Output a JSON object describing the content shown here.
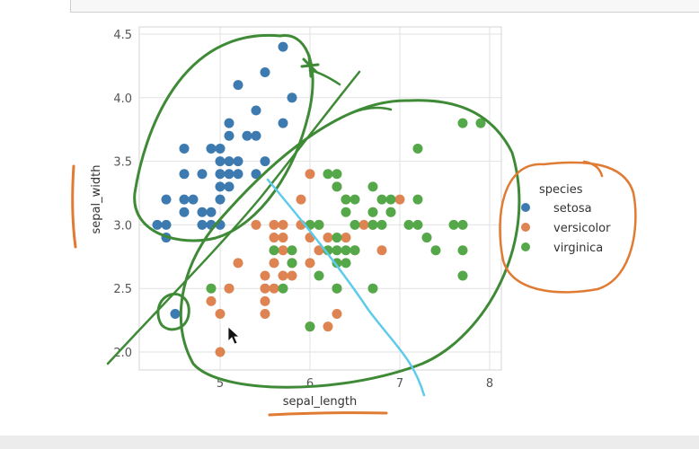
{
  "chart_data": {
    "type": "scatter",
    "xlabel": "sepal_length",
    "ylabel": "sepal_width",
    "xlim": [
      4.1,
      8.1
    ],
    "ylim": [
      1.85,
      4.5
    ],
    "x_ticks": [
      "5",
      "6",
      "7",
      "8"
    ],
    "y_ticks": [
      "2.0",
      "2.5",
      "3.0",
      "3.5",
      "4.0",
      "4.5"
    ],
    "grid": true,
    "legend_position": "right",
    "legend_title": "species",
    "colors": {
      "setosa": "#3d7ab0",
      "versicolor": "#dd8452",
      "virginica": "#55a84a"
    },
    "series": [
      {
        "name": "setosa",
        "points": [
          [
            4.3,
            3.0
          ],
          [
            4.4,
            2.9
          ],
          [
            4.4,
            3.0
          ],
          [
            4.4,
            3.2
          ],
          [
            4.5,
            2.3
          ],
          [
            4.6,
            3.1
          ],
          [
            4.6,
            3.2
          ],
          [
            4.6,
            3.4
          ],
          [
            4.6,
            3.6
          ],
          [
            4.7,
            3.2
          ],
          [
            4.8,
            3.0
          ],
          [
            4.8,
            3.1
          ],
          [
            4.8,
            3.4
          ],
          [
            4.9,
            3.0
          ],
          [
            4.9,
            3.1
          ],
          [
            4.9,
            3.6
          ],
          [
            5.0,
            3.0
          ],
          [
            5.0,
            3.2
          ],
          [
            5.0,
            3.3
          ],
          [
            5.0,
            3.4
          ],
          [
            5.0,
            3.5
          ],
          [
            5.0,
            3.6
          ],
          [
            5.1,
            3.3
          ],
          [
            5.1,
            3.4
          ],
          [
            5.1,
            3.5
          ],
          [
            5.1,
            3.7
          ],
          [
            5.1,
            3.8
          ],
          [
            5.2,
            3.4
          ],
          [
            5.2,
            3.5
          ],
          [
            5.2,
            4.1
          ],
          [
            5.3,
            3.7
          ],
          [
            5.4,
            3.4
          ],
          [
            5.4,
            3.7
          ],
          [
            5.4,
            3.9
          ],
          [
            5.5,
            3.5
          ],
          [
            5.5,
            4.2
          ],
          [
            5.7,
            3.8
          ],
          [
            5.7,
            4.4
          ],
          [
            5.8,
            4.0
          ]
        ]
      },
      {
        "name": "versicolor",
        "points": [
          [
            4.9,
            2.4
          ],
          [
            5.0,
            2.0
          ],
          [
            5.0,
            2.3
          ],
          [
            5.1,
            2.5
          ],
          [
            5.2,
            2.7
          ],
          [
            5.4,
            3.0
          ],
          [
            5.5,
            2.3
          ],
          [
            5.5,
            2.4
          ],
          [
            5.5,
            2.5
          ],
          [
            5.5,
            2.6
          ],
          [
            5.6,
            2.5
          ],
          [
            5.6,
            2.7
          ],
          [
            5.6,
            2.9
          ],
          [
            5.6,
            3.0
          ],
          [
            5.7,
            2.6
          ],
          [
            5.7,
            2.8
          ],
          [
            5.7,
            2.9
          ],
          [
            5.7,
            3.0
          ],
          [
            5.8,
            2.6
          ],
          [
            5.8,
            2.7
          ],
          [
            5.9,
            3.0
          ],
          [
            5.9,
            3.2
          ],
          [
            6.0,
            2.2
          ],
          [
            6.0,
            2.7
          ],
          [
            6.0,
            2.9
          ],
          [
            6.0,
            3.4
          ],
          [
            6.1,
            2.8
          ],
          [
            6.1,
            3.0
          ],
          [
            6.2,
            2.2
          ],
          [
            6.2,
            2.9
          ],
          [
            6.3,
            2.3
          ],
          [
            6.3,
            2.5
          ],
          [
            6.3,
            3.3
          ],
          [
            6.4,
            2.9
          ],
          [
            6.4,
            3.2
          ],
          [
            6.5,
            2.8
          ],
          [
            6.6,
            3.0
          ],
          [
            6.7,
            3.0
          ],
          [
            6.7,
            3.1
          ],
          [
            6.8,
            2.8
          ],
          [
            6.9,
            3.1
          ],
          [
            7.0,
            3.2
          ]
        ]
      },
      {
        "name": "virginica",
        "points": [
          [
            4.9,
            2.5
          ],
          [
            5.6,
            2.8
          ],
          [
            5.7,
            2.5
          ],
          [
            5.8,
            2.7
          ],
          [
            5.8,
            2.8
          ],
          [
            6.0,
            2.2
          ],
          [
            6.0,
            3.0
          ],
          [
            6.1,
            2.6
          ],
          [
            6.1,
            3.0
          ],
          [
            6.2,
            2.8
          ],
          [
            6.2,
            3.4
          ],
          [
            6.3,
            2.5
          ],
          [
            6.3,
            2.7
          ],
          [
            6.3,
            2.8
          ],
          [
            6.3,
            2.9
          ],
          [
            6.3,
            3.3
          ],
          [
            6.3,
            3.4
          ],
          [
            6.4,
            2.7
          ],
          [
            6.4,
            2.8
          ],
          [
            6.4,
            3.1
          ],
          [
            6.4,
            3.2
          ],
          [
            6.5,
            2.8
          ],
          [
            6.5,
            3.0
          ],
          [
            6.5,
            3.2
          ],
          [
            6.7,
            2.5
          ],
          [
            6.7,
            3.0
          ],
          [
            6.7,
            3.1
          ],
          [
            6.7,
            3.3
          ],
          [
            6.8,
            3.0
          ],
          [
            6.8,
            3.2
          ],
          [
            6.9,
            3.1
          ],
          [
            6.9,
            3.2
          ],
          [
            7.1,
            3.0
          ],
          [
            7.2,
            3.0
          ],
          [
            7.2,
            3.2
          ],
          [
            7.2,
            3.6
          ],
          [
            7.3,
            2.9
          ],
          [
            7.4,
            2.8
          ],
          [
            7.6,
            3.0
          ],
          [
            7.7,
            2.6
          ],
          [
            7.7,
            2.8
          ],
          [
            7.7,
            3.0
          ],
          [
            7.7,
            3.8
          ],
          [
            7.9,
            3.8
          ]
        ]
      }
    ]
  },
  "annotation_colors": {
    "green": "#3f8a36",
    "orange": "#e07b33",
    "blue": "#5ecbea"
  },
  "cursor_icon": "arrow-cursor-icon"
}
